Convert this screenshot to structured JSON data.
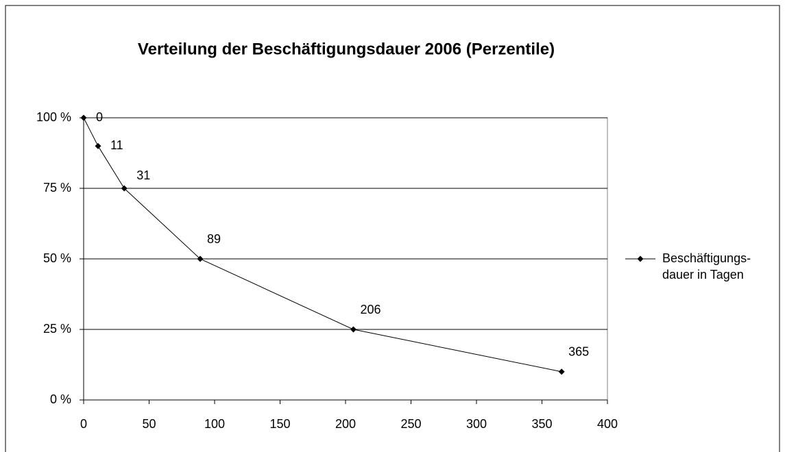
{
  "chart_data": {
    "type": "line",
    "title": "Verteilung der Beschäftigungsdauer 2006  (Perzentile)",
    "series": [
      {
        "name": "Beschäftigungs- dauer in Tagen",
        "color": "#000000",
        "x": [
          0,
          11,
          31,
          89,
          206,
          365
        ],
        "values": [
          100,
          90,
          75,
          50,
          25,
          10
        ]
      }
    ],
    "xlim": [
      0,
      400
    ],
    "xticks": [
      0,
      50,
      100,
      150,
      200,
      250,
      300,
      350,
      400
    ],
    "ylim": [
      0,
      100
    ],
    "yticks": [
      {
        "value": 0,
        "label": "0 %"
      },
      {
        "value": 25,
        "label": "25 %"
      },
      {
        "value": 50,
        "label": "50 %"
      },
      {
        "value": 75,
        "label": "75 %"
      },
      {
        "value": 100,
        "label": "100 %"
      }
    ],
    "grid": true,
    "legend": "right"
  }
}
